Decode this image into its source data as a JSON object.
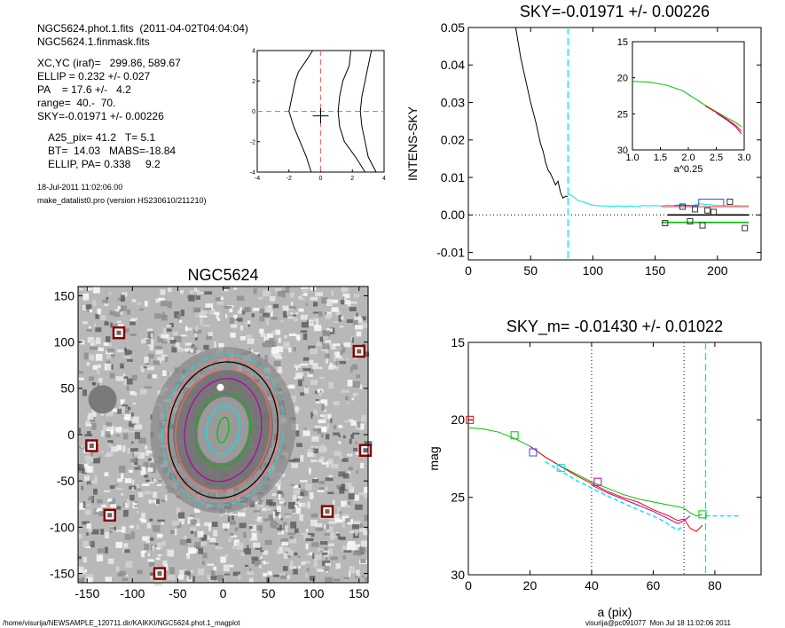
{
  "header": {
    "file1": "NGC5624.phot.1.fits  (2011-04-02T04:04:04)",
    "file2": "NGC5624.1.finmask.fits",
    "params": [
      "XC,YC (iraf)=   299.86, 589.67",
      "ELLIP = 0.232 +/- 0.027",
      "PA    = 17.6 +/-   4.2",
      "range=  40.-  70.",
      "SKY=-0.01971 +/- 0.00226"
    ],
    "results": [
      "A25_pix= 41.2   T= 5.1",
      "BT=  14.03   MABS=-18.84",
      "ELLIP, PA= 0.338     9.2"
    ],
    "date": "18-Jul-2011 11:02:06.00",
    "program": "make_datalist0.pro (version HS230610/211210)"
  },
  "footer": {
    "left": "/home/visurija/NEWSAMPLE_120711.dir/KAIKKI/NGC5624.phot.1_magplot",
    "right": "visurija@pc091077  Mon Jul 18 11:02:06 2011"
  },
  "colors": {
    "axis": "#000000",
    "cyan": "#00e5ee",
    "green": "#00c000",
    "red": "#ff0000",
    "pink": "#ff7777",
    "blue": "#4444ff",
    "purple": "#b000b0",
    "gray": "#aaaaaa",
    "salmon": "#ff6666"
  },
  "chart_data": [
    {
      "id": "contour",
      "type": "line",
      "title": "",
      "xlim": [
        -4,
        4
      ],
      "ylim": [
        -4,
        4
      ],
      "xticks": [
        -4,
        -2,
        0,
        2,
        4
      ],
      "yticks": [
        -4,
        -2,
        0,
        2,
        4
      ],
      "series": [
        {
          "x": [
            -0.6,
            -0.9,
            -1.3,
            -1.7,
            -2.0,
            -1.8,
            -1.6,
            -1.4,
            -1.0,
            -0.5
          ],
          "y": [
            -4,
            -3,
            -2,
            -1,
            0,
            1,
            2,
            2.6,
            3.2,
            4
          ]
        },
        {
          "x": [
            2.8,
            2.2,
            1.5,
            1.2,
            1.1,
            1.2,
            1.4,
            1.8,
            1.9
          ],
          "y": [
            -4,
            -3,
            -2,
            -1,
            0,
            1,
            2,
            3,
            4
          ]
        },
        {
          "x": [
            3.5,
            3.0,
            2.8,
            2.6,
            2.5,
            2.6,
            2.8,
            3.0,
            3.2
          ],
          "y": [
            -4,
            -3,
            -2,
            -1,
            0,
            1,
            2,
            3,
            4
          ]
        }
      ]
    },
    {
      "id": "image",
      "type": "image",
      "title": "NGC5624",
      "xlim": [
        -160,
        160
      ],
      "ylim": [
        -160,
        160
      ],
      "xticks": [
        -150,
        -100,
        -50,
        0,
        50,
        100,
        150
      ],
      "yticks": [
        -150,
        -100,
        -50,
        0,
        50,
        100,
        150
      ],
      "ellipses": [
        {
          "a": 82,
          "b": 66,
          "color": "cyan"
        },
        {
          "a": 78,
          "b": 62,
          "color": "pink"
        },
        {
          "a": 74,
          "b": 60,
          "color": "black"
        },
        {
          "a": 66,
          "b": 52,
          "color": "salmon"
        },
        {
          "a": 56,
          "b": 42,
          "color": "purple"
        },
        {
          "a": 40,
          "b": 30,
          "color": "green"
        },
        {
          "a": 26,
          "b": 18,
          "color": "cyan"
        },
        {
          "a": 14,
          "b": 6,
          "color": "green"
        }
      ],
      "masks": [
        {
          "x": -115,
          "y": 110
        },
        {
          "x": 150,
          "y": 90
        },
        {
          "x": -145,
          "y": -12
        },
        {
          "x": 157,
          "y": -17
        },
        {
          "x": -125,
          "y": -87
        },
        {
          "x": 115,
          "y": -83
        },
        {
          "x": -70,
          "y": -150
        }
      ]
    },
    {
      "id": "sky",
      "type": "line",
      "title": "SKY=-0.01971 +/- 0.00226",
      "xlabel": "",
      "ylabel": "INTENS-SKY",
      "xlim": [
        0,
        235
      ],
      "ylim": [
        -0.012,
        0.05
      ],
      "xticks": [
        0,
        50,
        100,
        150,
        200
      ],
      "yticks": [
        -0.01,
        0.0,
        0.01,
        0.02,
        0.03,
        0.04,
        0.05
      ],
      "ytick_labels": [
        "-0.01",
        "0.00",
        "0.01",
        "0.02",
        "0.03",
        "0.04",
        "0.05"
      ],
      "vline": 80,
      "series": [
        {
          "name": "",
          "color": "black",
          "x": [
            38,
            42,
            46,
            50,
            54,
            56,
            58,
            60,
            62,
            64,
            66,
            68,
            70,
            72,
            74,
            76,
            78,
            80
          ],
          "y": [
            0.05,
            0.042,
            0.036,
            0.03,
            0.025,
            0.022,
            0.019,
            0.017,
            0.014,
            0.012,
            0.011,
            0.0095,
            0.008,
            0.009,
            0.006,
            0.0045,
            0.005,
            0.005
          ]
        },
        {
          "name": "",
          "color": "cyan",
          "x": [
            80,
            84,
            88,
            92,
            96,
            100,
            105,
            110,
            115,
            120,
            125,
            130,
            135,
            140,
            145,
            150,
            155,
            160,
            165,
            170,
            175,
            180,
            185,
            190,
            195,
            200,
            205,
            210,
            215,
            220,
            225
          ],
          "y": [
            0.0055,
            0.005,
            0.0038,
            0.0035,
            0.003,
            0.0026,
            0.0024,
            0.0024,
            0.0023,
            0.0024,
            0.0023,
            0.0024,
            0.0022,
            0.0025,
            0.0024,
            0.0025,
            0.0024,
            0.0026,
            0.0025,
            0.0027,
            0.0026,
            0.0025,
            0.003,
            0.0028,
            0.0027,
            0.0025,
            0.0025,
            0.0024,
            0.0025,
            0.0024,
            0.0025
          ]
        },
        {
          "name": "",
          "color": "pink",
          "x": [
            155,
            225
          ],
          "y": [
            0.0022,
            0.0022
          ]
        },
        {
          "name": "",
          "color": "black",
          "x": [
            160,
            225
          ],
          "y": [
            0.0,
            0.0
          ]
        },
        {
          "name": "",
          "color": "green",
          "x": [
            155,
            225
          ],
          "y": [
            -0.002,
            -0.002
          ]
        }
      ],
      "squares": [
        {
          "x": 158,
          "y": -0.0022
        },
        {
          "x": 172,
          "y": 0.0022
        },
        {
          "x": 178,
          "y": -0.0017
        },
        {
          "x": 182,
          "y": 0.0015
        },
        {
          "x": 188,
          "y": -0.0028
        },
        {
          "x": 192,
          "y": 0.0012
        },
        {
          "x": 197,
          "y": 0.0008
        },
        {
          "x": 210,
          "y": 0.0035
        },
        {
          "x": 222,
          "y": -0.0035
        }
      ]
    },
    {
      "id": "inset",
      "type": "line",
      "title": "",
      "xlabel": "a^0.25",
      "xlim": [
        1.0,
        3.0
      ],
      "ylim": [
        15,
        30
      ],
      "y_inverted": true,
      "xticks": [
        1.0,
        1.5,
        2.0,
        2.5,
        3.0
      ],
      "xtick_labels": [
        "1.0",
        "1.5",
        "2.0",
        "2.5",
        "3.0"
      ],
      "yticks": [
        15,
        20,
        25,
        30
      ],
      "series": [
        {
          "name": "",
          "color": "green",
          "x": [
            1.0,
            1.3,
            1.6,
            1.9,
            2.1,
            2.3,
            2.5,
            2.7,
            2.85,
            2.95
          ],
          "y": [
            20.5,
            20.6,
            21.0,
            21.8,
            22.8,
            23.8,
            24.7,
            25.6,
            26.2,
            26.8
          ]
        },
        {
          "name": "",
          "color": "red",
          "x": [
            2.3,
            2.5,
            2.7,
            2.85,
            2.95
          ],
          "y": [
            23.9,
            24.8,
            25.8,
            26.6,
            27.4
          ]
        },
        {
          "name": "",
          "color": "purple",
          "x": [
            2.5,
            2.7,
            2.85,
            2.95
          ],
          "y": [
            24.9,
            25.9,
            26.8,
            27.8
          ]
        }
      ]
    },
    {
      "id": "mag",
      "type": "line",
      "title": "SKY_m= -0.01430 +/- 0.01022",
      "xlabel": "a (pix)",
      "ylabel": "mag",
      "xlim": [
        0,
        95
      ],
      "ylim": [
        15,
        30
      ],
      "y_inverted": true,
      "xticks": [
        0,
        20,
        40,
        60,
        80
      ],
      "yticks": [
        15,
        20,
        25,
        30
      ],
      "vlines": [
        40,
        70
      ],
      "cyan_vline": 77,
      "series": [
        {
          "name": "",
          "color": "green",
          "x": [
            0,
            5,
            10,
            15,
            20,
            25,
            30,
            35,
            40,
            45,
            50,
            55,
            60,
            65,
            68,
            70,
            72,
            74,
            76
          ],
          "y": [
            20.5,
            20.6,
            20.8,
            21.2,
            21.7,
            22.4,
            23.0,
            23.5,
            24.0,
            24.4,
            24.8,
            25.1,
            25.3,
            25.5,
            25.6,
            25.7,
            26.0,
            26.2,
            26.1
          ]
        },
        {
          "name": "",
          "color": "red",
          "x": [
            20,
            25,
            30,
            35,
            40,
            45,
            50,
            55,
            60,
            65,
            68,
            70,
            72,
            74,
            76
          ],
          "y": [
            21.7,
            22.4,
            23.0,
            23.6,
            24.1,
            24.6,
            25.0,
            25.3,
            25.8,
            26.2,
            26.5,
            26.4,
            27.0,
            27.2,
            26.8
          ]
        },
        {
          "name": "",
          "color": "purple",
          "x": [
            40,
            45,
            50,
            55,
            60,
            65,
            68,
            70,
            72
          ],
          "y": [
            24.2,
            24.7,
            25.1,
            25.5,
            25.9,
            26.4,
            26.7,
            26.5,
            26.2
          ]
        },
        {
          "name": "",
          "color": "cyan",
          "dashed": true,
          "x": [
            25,
            35,
            45,
            55,
            60,
            64,
            66,
            68,
            70
          ],
          "y": [
            22.7,
            23.9,
            24.9,
            25.8,
            26.2,
            26.6,
            26.9,
            27.1,
            26.8
          ]
        },
        {
          "name": "",
          "color": "cyan",
          "dashed": true,
          "x": [
            77,
            88
          ],
          "y": [
            26.2,
            26.2
          ]
        }
      ],
      "squares": [
        {
          "x": 0.5,
          "y": 20.0,
          "color": "red"
        },
        {
          "x": 15,
          "y": 21.0,
          "color": "green"
        },
        {
          "x": 21,
          "y": 22.1,
          "color": "blue"
        },
        {
          "x": 30,
          "y": 23.1,
          "color": "cyan"
        },
        {
          "x": 42,
          "y": 24.0,
          "color": "purple"
        },
        {
          "x": 76,
          "y": 26.1,
          "color": "green"
        }
      ]
    }
  ]
}
